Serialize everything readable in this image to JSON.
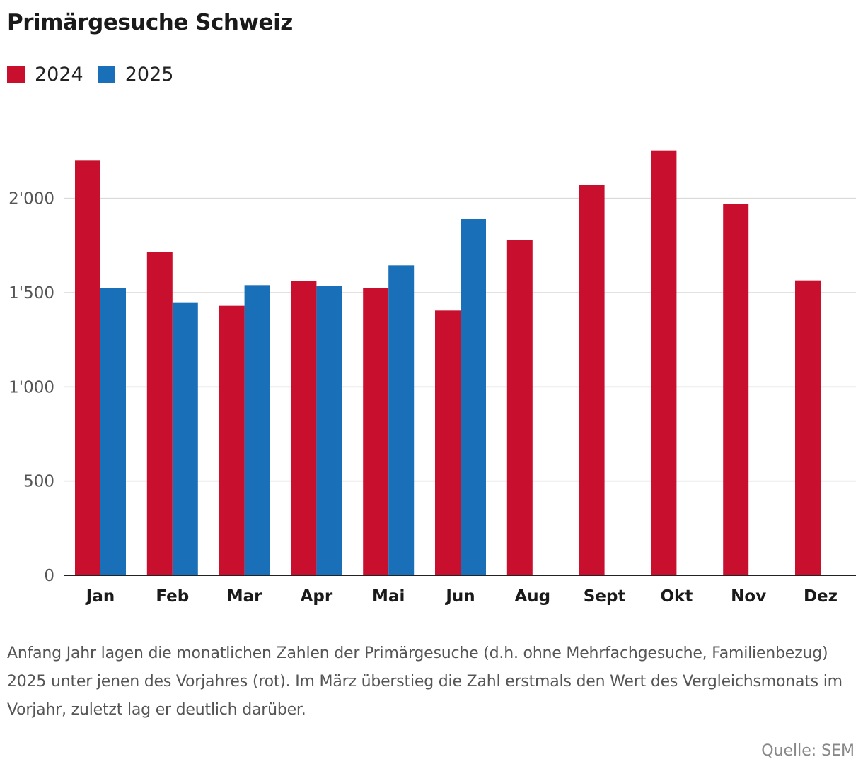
{
  "title": "Primärgesuche Schweiz",
  "colors": {
    "s2024": "#c8102e",
    "s2025": "#1a70b8",
    "grid": "#d9d9d9",
    "axis": "#222222"
  },
  "caption": "Anfang Jahr lagen die monatlichen Zahlen der Primärgesuche (d.h. ohne Mehrfachgesuche, Familienbezug) 2025 unter jenen des Vorjahres (rot). Im März überstieg die Zahl erstmals den Wert des Vergleichsmonats im Vorjahr, zuletzt lag er deutlich darüber.",
  "source": "Quelle: SEM",
  "chart_data": {
    "type": "bar",
    "title": "Primärgesuche Schweiz",
    "xlabel": "",
    "ylabel": "",
    "ylim": [
      0,
      2300
    ],
    "yticks": [
      0,
      500,
      1000,
      1500,
      2000
    ],
    "ytick_labels": [
      "0",
      "500",
      "1'000",
      "1'500",
      "2'000"
    ],
    "grid": true,
    "legend_position": "top-left",
    "categories": [
      "Jan",
      "Feb",
      "Mar",
      "Apr",
      "Mai",
      "Jun",
      "Aug",
      "Sept",
      "Okt",
      "Nov",
      "Dez"
    ],
    "series": [
      {
        "name": "2024",
        "values": [
          2200,
          1715,
          1430,
          1560,
          1525,
          1405,
          1780,
          2070,
          2255,
          1970,
          1565
        ]
      },
      {
        "name": "2025",
        "values": [
          1525,
          1445,
          1540,
          1535,
          1645,
          1890,
          null,
          null,
          null,
          null,
          null
        ]
      }
    ]
  }
}
